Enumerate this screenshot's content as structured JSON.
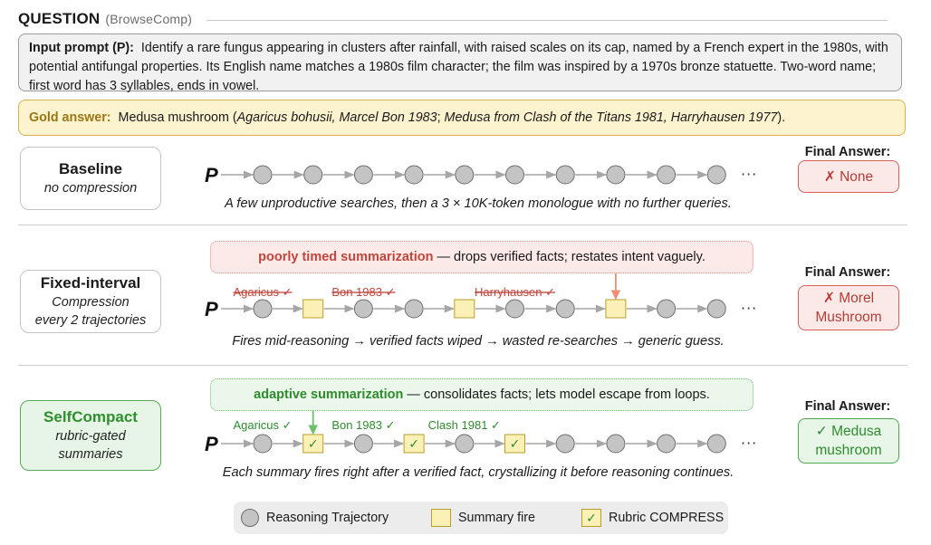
{
  "header": {
    "title": "QUESTION",
    "subtitle": "(BrowseComp)"
  },
  "prompt": {
    "label": "Input prompt (P):",
    "text": "Identify a rare fungus appearing in clusters after rainfall, with raised scales on its cap, named by a French expert in the 1980s, with potential antifungal properties. Its English name matches a 1980s film character; the film was inspired by a 1970s bronze statuette. Two-word name; first word has 3 syllables, ends in vowel."
  },
  "gold": {
    "label": "Gold answer:",
    "before": "Medusa mushroom (",
    "italic1": "Agaricus bohusii, Marcel Bon 1983",
    "mid": "; ",
    "italic2": "Medusa from Clash of the Titans 1981, Harryhausen 1977",
    "after": ")."
  },
  "final_answer_label": "Final Answer:",
  "ellipsis": "···",
  "p_symbol": "P",
  "check_glyph": "✓",
  "rows": [
    {
      "id": "baseline",
      "title": "Baseline",
      "sub1": "no compression",
      "sub2": "",
      "answer_line1": "✗  None",
      "answer_line2": "",
      "caption": "A few unproductive searches, then a 3 × 10K-token monologue with no further queries.",
      "nodes": [
        "c",
        "c",
        "c",
        "c",
        "c",
        "c",
        "c",
        "c",
        "c",
        "c"
      ],
      "labels": [],
      "callout": null
    },
    {
      "id": "fixed",
      "title": "Fixed-interval",
      "sub1": "Compression",
      "sub2": "every 2 trajectories",
      "answer_line1": "✗  Morel",
      "answer_line2": "Mushroom",
      "caption": "Fires mid-reasoning → verified facts wiped → wasted re-searches → generic guess.",
      "nodes": [
        "c",
        "s",
        "c",
        "c",
        "s",
        "c",
        "c",
        "s",
        "c",
        "c"
      ],
      "labels": [
        {
          "text": "Agaricus ✓",
          "node": 0
        },
        {
          "text": "Bon 1983 ✓",
          "node": 2
        },
        {
          "text": "Harryhausen ✓",
          "node": 5
        }
      ],
      "callout": {
        "bold": "poorly timed summarization",
        "rest": " — drops verified facts; restates intent vaguely.",
        "target_node": 7
      }
    },
    {
      "id": "selfcompact",
      "title": "SelfCompact",
      "sub1": "rubric-gated",
      "sub2": "summaries",
      "answer_line1": "✓  Medusa",
      "answer_line2": "mushroom",
      "caption": "Each summary fires right after a verified fact, crystallizing it before reasoning continues.",
      "nodes": [
        "c",
        "r",
        "c",
        "r",
        "c",
        "r",
        "c",
        "c",
        "c",
        "c"
      ],
      "labels": [
        {
          "text": "Agaricus ✓",
          "node": 0
        },
        {
          "text": "Bon 1983 ✓",
          "node": 2
        },
        {
          "text": "Clash 1981 ✓",
          "node": 4
        }
      ],
      "callout": {
        "bold": "adaptive summarization",
        "rest": " — consolidates facts; lets model escape from loops.",
        "target_node": 1
      }
    }
  ],
  "legend": {
    "circle": "Reasoning Trajectory",
    "square": "Summary fire",
    "rubric": "Rubric COMPRESS"
  },
  "colors": {
    "node_fill": "#c4c4c4",
    "node_stroke": "#6d6d6d",
    "square_fill": "#fbf1b6",
    "square_stroke": "#b99f2a",
    "red": "#c0463d",
    "red_arrow": "#ee8e75",
    "green": "#2e8b2e",
    "green_arrow": "#6cc16c",
    "connector": "#a6a6a6"
  }
}
